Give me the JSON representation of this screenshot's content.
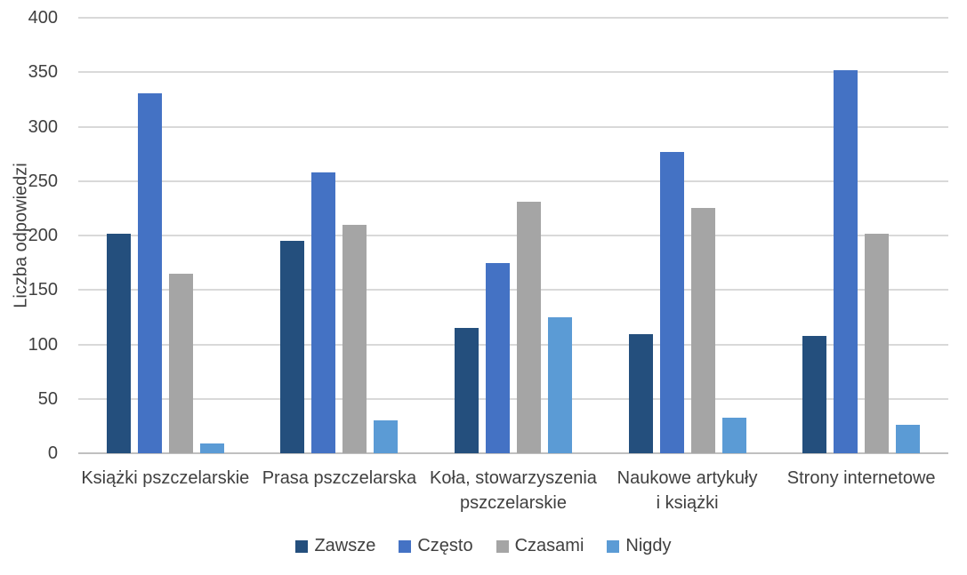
{
  "chart_data": {
    "type": "bar",
    "title": "",
    "xlabel": "",
    "ylabel": "Liczba odpowiedzi",
    "ylim": [
      0,
      400
    ],
    "ytick_step": 50,
    "grid": "horizontal",
    "legend_position": "bottom",
    "categories": [
      "Książki pszczelarskie",
      "Prasa pszczelarska",
      "Koła, stowarzyszenia\npszczelarskie",
      "Naukowe artykuły\ni książki",
      "Strony internetowe"
    ],
    "series": [
      {
        "name": "Zawsze",
        "color": "#244F7D",
        "values": [
          202,
          195,
          115,
          109,
          108
        ]
      },
      {
        "name": "Często",
        "color": "#4472C4",
        "values": [
          331,
          258,
          175,
          277,
          352
        ]
      },
      {
        "name": "Czasami",
        "color": "#A5A5A5",
        "values": [
          165,
          210,
          231,
          225,
          202
        ]
      },
      {
        "name": "Nigdy",
        "color": "#5B9BD5",
        "values": [
          9,
          30,
          125,
          33,
          26
        ]
      }
    ]
  },
  "colors": {
    "text": "#404040",
    "gridline": "#D9D9D9",
    "baseline": "#C0C0C0",
    "background": "#FFFFFF"
  }
}
